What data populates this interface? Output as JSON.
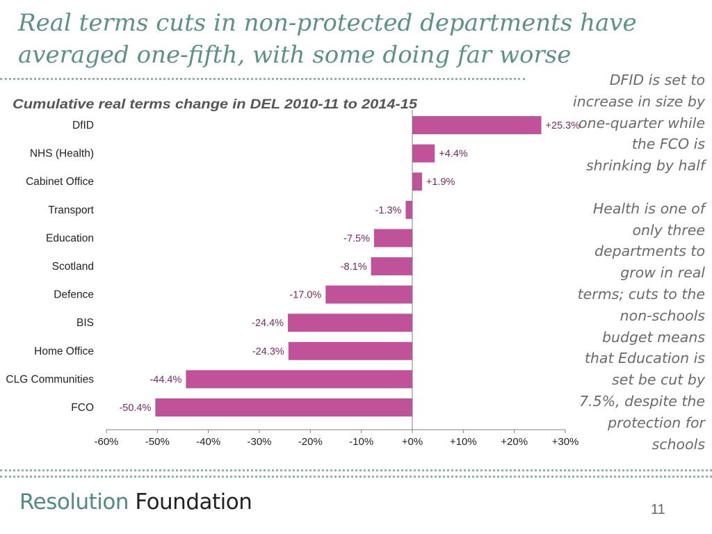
{
  "slide": {
    "title": "Real terms cuts in non-protected departments have averaged one-fifth, with some doing far worse",
    "notes": [
      "DFID is set to increase in size by one-quarter while the FCO is shrinking by half",
      "Health is one of only three departments to grow in real terms; cuts to the non-schools budget means that Education is set be cut by 7.5%, despite the protection for schools"
    ],
    "brand_part1": "Resolution",
    "brand_part2": "Foundation",
    "page_number": "11"
  },
  "colors": {
    "bar": "#c0529a",
    "accent": "#5c9285",
    "value_label": "#7a2a60"
  },
  "chart_data": {
    "type": "bar",
    "orientation": "horizontal",
    "title": "Cumulative real terms change in DEL 2010-11 to 2014-15",
    "categories": [
      "DfID",
      "NHS (Health)",
      "Cabinet Office",
      "Transport",
      "Education",
      "Scotland",
      "Defence",
      "BIS",
      "Home Office",
      "CLG Communities",
      "FCO"
    ],
    "values": [
      25.3,
      4.4,
      1.9,
      -1.3,
      -7.5,
      -8.1,
      -17.0,
      -24.4,
      -24.3,
      -44.4,
      -50.4
    ],
    "value_labels": [
      "+25.3%",
      "+4.4%",
      "+1.9%",
      "-1.3%",
      "-7.5%",
      "-8.1%",
      "-17.0%",
      "-24.4%",
      "-24.3%",
      "-44.4%",
      "-50.4%"
    ],
    "xlim": [
      -60,
      30
    ],
    "ticks": [
      -60,
      -50,
      -40,
      -30,
      -20,
      -10,
      0,
      10,
      20,
      30
    ],
    "tick_labels": [
      "-60%",
      "-50%",
      "-40%",
      "-30%",
      "-20%",
      "-10%",
      "+0%",
      "+10%",
      "+20%",
      "+30%"
    ],
    "xlabel": "",
    "ylabel": "",
    "grid": false
  }
}
